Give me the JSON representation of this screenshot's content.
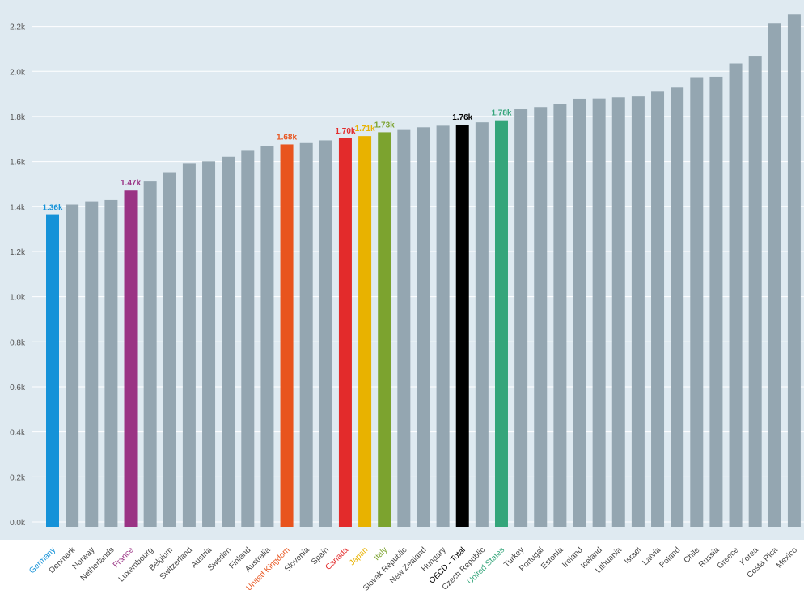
{
  "chart_data": {
    "type": "bar",
    "title": "",
    "xlabel": "",
    "ylabel": "",
    "ylim": [
      0,
      2300
    ],
    "yticks": [
      "0.0k",
      "0.2k",
      "0.4k",
      "0.6k",
      "0.8k",
      "1.0k",
      "1.2k",
      "1.4k",
      "1.6k",
      "1.8k",
      "2.0k",
      "2.2k"
    ],
    "grid": "horizontal",
    "default_color": "#94a6b1",
    "plot_background": "#dfeaf1",
    "categories": [
      "Germany",
      "Denmark",
      "Norway",
      "Netherlands",
      "France",
      "Luxembourg",
      "Belgium",
      "Switzerland",
      "Austria",
      "Sweden",
      "Finland",
      "Australia",
      "United Kingdom",
      "Slovenia",
      "Spain",
      "Canada",
      "Japan",
      "Italy",
      "Slovak Republic",
      "New Zealand",
      "Hungary",
      "OECD - Total",
      "Czech Republic",
      "United States",
      "Turkey",
      "Portugal",
      "Estonia",
      "Ireland",
      "Iceland",
      "Lithuania",
      "Israel",
      "Latvia",
      "Poland",
      "Chile",
      "Russia",
      "Greece",
      "Korea",
      "Costa Rica",
      "Mexico"
    ],
    "values": [
      1363,
      1410,
      1424,
      1430,
      1472,
      1512,
      1550,
      1590,
      1601,
      1621,
      1651,
      1669,
      1676,
      1682,
      1694,
      1703,
      1713,
      1730,
      1740,
      1752,
      1759,
      1763,
      1774,
      1783,
      1832,
      1842,
      1857,
      1879,
      1880,
      1885,
      1889,
      1910,
      1928,
      1974,
      1976,
      2035,
      2069,
      2212,
      2255
    ],
    "highlights": [
      {
        "category": "Germany",
        "label": "1.36k",
        "color": "#1592d8"
      },
      {
        "category": "France",
        "label": "1.47k",
        "color": "#9a3384"
      },
      {
        "category": "United Kingdom",
        "label": "1.68k",
        "color": "#e8541e"
      },
      {
        "category": "Canada",
        "label": "1.70k",
        "color": "#e32b2b"
      },
      {
        "category": "Japan",
        "label": "1.71k",
        "color": "#e8b200"
      },
      {
        "category": "Italy",
        "label": "1.73k",
        "color": "#7ca32f"
      },
      {
        "category": "OECD - Total",
        "label": "1.76k",
        "color": "#000000"
      },
      {
        "category": "United States",
        "label": "1.78k",
        "color": "#34a57a"
      }
    ]
  }
}
